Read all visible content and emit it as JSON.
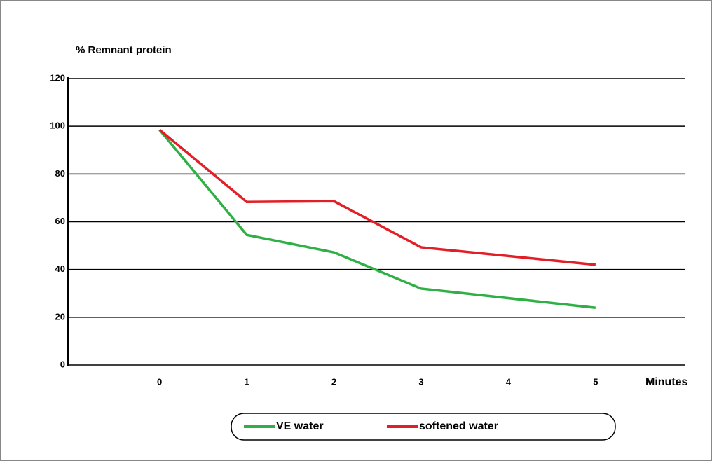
{
  "chart_data": {
    "type": "line",
    "y_label": "% Remnant protein",
    "x_label": "Minutes",
    "x": [
      0,
      1,
      2,
      3,
      5
    ],
    "series": [
      {
        "name": "VE water",
        "color": "#2eb044",
        "values": [
          98.5,
          54.5,
          47.2,
          32,
          24
        ]
      },
      {
        "name": "softened water",
        "color": "#e21e26",
        "values": [
          98.5,
          68.3,
          68.6,
          49.3,
          42
        ]
      }
    ],
    "xlim": [
      -1.05,
      6.03
    ],
    "xticks": [
      0,
      1,
      2,
      3,
      4,
      5
    ],
    "ylim": [
      0,
      120
    ],
    "yticks": [
      0,
      20,
      40,
      60,
      80,
      100,
      120
    ],
    "grid": true,
    "legend": "bottom"
  }
}
